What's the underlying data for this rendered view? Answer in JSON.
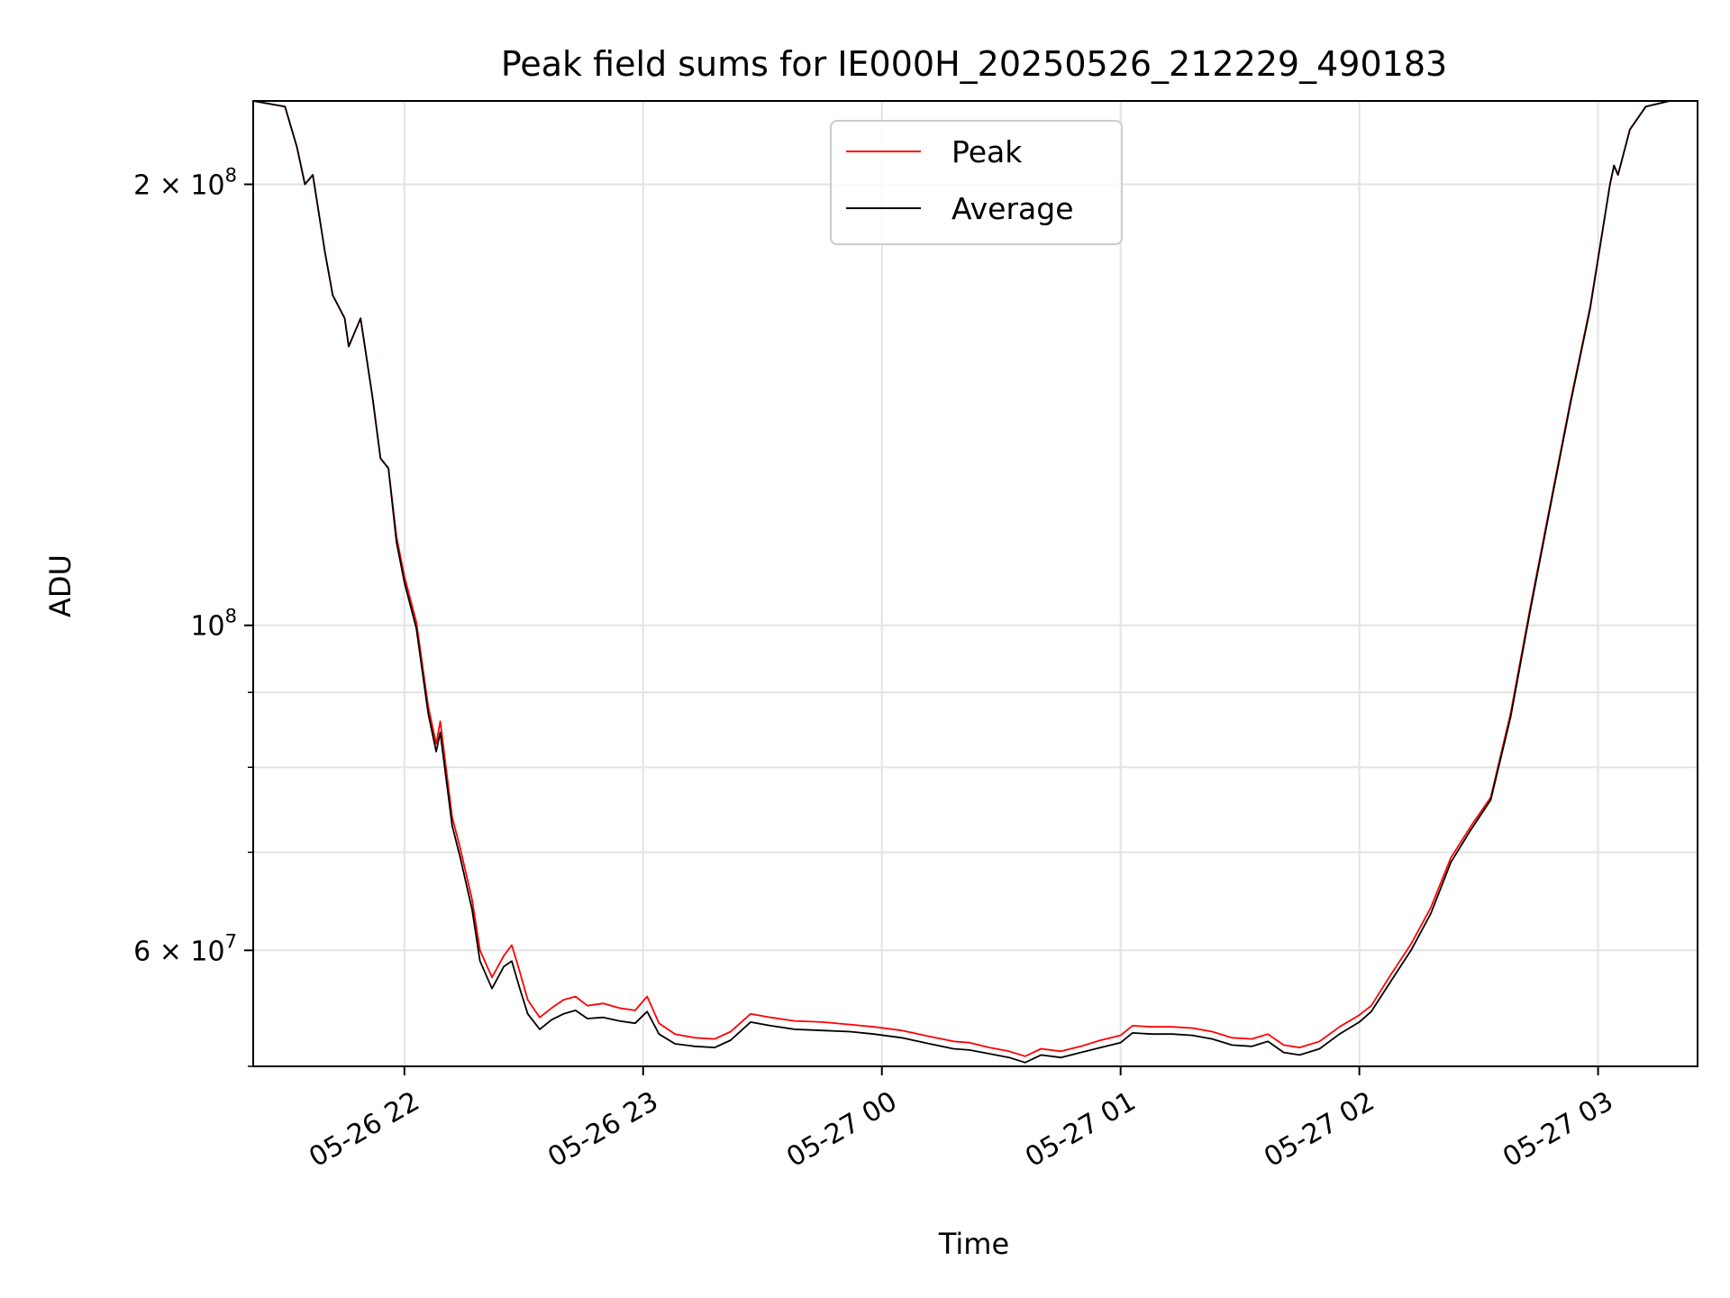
{
  "chart_data": {
    "type": "line",
    "title": "Peak field sums for IE000H_20250526_212229_490183",
    "xlabel": "Time",
    "ylabel": "ADU",
    "y_scale": "log",
    "ylim": [
      50000000,
      228000000
    ],
    "xlim": [
      "2025-05-26 21:22",
      "2025-05-27 03:25"
    ],
    "grid": true,
    "legend_position": "top-center",
    "x_ticks": [
      {
        "time": "2025-05-26 22:00",
        "label": "05-26 22"
      },
      {
        "time": "2025-05-26 23:00",
        "label": "05-26 23"
      },
      {
        "time": "2025-05-27 00:00",
        "label": "05-27 00"
      },
      {
        "time": "2025-05-27 01:00",
        "label": "05-27 01"
      },
      {
        "time": "2025-05-27 02:00",
        "label": "05-27 02"
      },
      {
        "time": "2025-05-27 03:00",
        "label": "05-27 03"
      }
    ],
    "y_major_ticks": [
      {
        "value": 200000000,
        "label_base": "2 × 10",
        "label_exp": "8"
      },
      {
        "value": 100000000,
        "label_base": "10",
        "label_exp": "8"
      },
      {
        "value": 60000000,
        "label_base": "6 × 10",
        "label_exp": "7"
      }
    ],
    "y_minor_ticks": [
      90000000,
      80000000,
      70000000,
      50000000
    ],
    "colors": {
      "Peak": "#ff0000",
      "Average": "#000000"
    },
    "series": [
      {
        "name": "Peak",
        "color": "#ff0000",
        "points": [
          [
            "2025-05-26 21:22",
            228000000
          ],
          [
            "2025-05-26 21:30",
            226000000
          ],
          [
            "2025-05-26 21:33",
            212000000
          ],
          [
            "2025-05-26 21:35",
            200000000
          ],
          [
            "2025-05-26 21:37",
            203000000
          ],
          [
            "2025-05-26 21:40",
            180000000
          ],
          [
            "2025-05-26 21:42",
            168000000
          ],
          [
            "2025-05-26 21:45",
            162000000
          ],
          [
            "2025-05-26 21:46",
            155000000
          ],
          [
            "2025-05-26 21:49",
            162000000
          ],
          [
            "2025-05-26 21:52",
            143000000
          ],
          [
            "2025-05-26 21:54",
            130000000
          ],
          [
            "2025-05-26 21:56",
            128000000
          ],
          [
            "2025-05-26 21:58",
            115000000
          ],
          [
            "2025-05-26 22:00",
            108000000
          ],
          [
            "2025-05-26 22:03",
            100500000
          ],
          [
            "2025-05-26 22:06",
            88000000
          ],
          [
            "2025-05-26 22:08",
            83000000
          ],
          [
            "2025-05-26 22:09",
            86000000
          ],
          [
            "2025-05-26 22:12",
            74000000
          ],
          [
            "2025-05-26 22:14",
            70500000
          ],
          [
            "2025-05-26 22:17",
            65000000
          ],
          [
            "2025-05-26 22:19",
            60000000
          ],
          [
            "2025-05-26 22:22",
            57500000
          ],
          [
            "2025-05-26 22:25",
            59500000
          ],
          [
            "2025-05-26 22:27",
            60500000
          ],
          [
            "2025-05-26 22:29",
            58000000
          ],
          [
            "2025-05-26 22:31",
            55500000
          ],
          [
            "2025-05-26 22:34",
            54000000
          ],
          [
            "2025-05-26 22:37",
            54800000
          ],
          [
            "2025-05-26 22:40",
            55500000
          ],
          [
            "2025-05-26 22:43",
            55800000
          ],
          [
            "2025-05-26 22:46",
            55000000
          ],
          [
            "2025-05-26 22:50",
            55200000
          ],
          [
            "2025-05-26 22:54",
            54800000
          ],
          [
            "2025-05-26 22:58",
            54600000
          ],
          [
            "2025-05-26 23:01",
            55800000
          ],
          [
            "2025-05-26 23:04",
            53500000
          ],
          [
            "2025-05-26 23:08",
            52600000
          ],
          [
            "2025-05-26 23:13",
            52300000
          ],
          [
            "2025-05-26 23:18",
            52200000
          ],
          [
            "2025-05-26 23:22",
            52800000
          ],
          [
            "2025-05-26 23:27",
            54300000
          ],
          [
            "2025-05-26 23:32",
            54000000
          ],
          [
            "2025-05-26 23:38",
            53700000
          ],
          [
            "2025-05-26 23:45",
            53600000
          ],
          [
            "2025-05-26 23:52",
            53400000
          ],
          [
            "2025-05-26 23:58",
            53200000
          ],
          [
            "2025-05-27 00:05",
            52900000
          ],
          [
            "2025-05-27 00:12",
            52400000
          ],
          [
            "2025-05-27 00:18",
            52000000
          ],
          [
            "2025-05-27 00:22",
            51900000
          ],
          [
            "2025-05-27 00:27",
            51500000
          ],
          [
            "2025-05-27 00:32",
            51200000
          ],
          [
            "2025-05-27 00:36",
            50800000
          ],
          [
            "2025-05-27 00:40",
            51400000
          ],
          [
            "2025-05-27 00:45",
            51200000
          ],
          [
            "2025-05-27 00:50",
            51600000
          ],
          [
            "2025-05-27 00:55",
            52100000
          ],
          [
            "2025-05-27 01:00",
            52500000
          ],
          [
            "2025-05-27 01:03",
            53300000
          ],
          [
            "2025-05-27 01:08",
            53200000
          ],
          [
            "2025-05-27 01:13",
            53200000
          ],
          [
            "2025-05-27 01:18",
            53100000
          ],
          [
            "2025-05-27 01:23",
            52800000
          ],
          [
            "2025-05-27 01:28",
            52300000
          ],
          [
            "2025-05-27 01:33",
            52200000
          ],
          [
            "2025-05-27 01:37",
            52600000
          ],
          [
            "2025-05-27 01:41",
            51700000
          ],
          [
            "2025-05-27 01:45",
            51500000
          ],
          [
            "2025-05-27 01:50",
            52000000
          ],
          [
            "2025-05-27 01:55",
            53200000
          ],
          [
            "2025-05-27 02:00",
            54200000
          ],
          [
            "2025-05-27 02:03",
            55000000
          ],
          [
            "2025-05-27 02:08",
            57800000
          ],
          [
            "2025-05-27 02:13",
            60600000
          ],
          [
            "2025-05-27 02:18",
            64200000
          ],
          [
            "2025-05-27 02:23",
            69400000
          ],
          [
            "2025-05-27 02:28",
            72900000
          ],
          [
            "2025-05-27 02:33",
            76300000
          ],
          [
            "2025-05-27 02:38",
            87000000
          ],
          [
            "2025-05-27 02:43",
            103000000
          ],
          [
            "2025-05-27 02:48",
            121000000
          ],
          [
            "2025-05-27 02:53",
            142000000
          ],
          [
            "2025-05-27 02:58",
            165000000
          ],
          [
            "2025-05-27 03:03",
            200000000
          ],
          [
            "2025-05-27 03:04",
            206000000
          ],
          [
            "2025-05-27 03:05",
            203000000
          ],
          [
            "2025-05-27 03:08",
            218000000
          ],
          [
            "2025-05-27 03:12",
            226000000
          ],
          [
            "2025-05-27 03:18",
            228000000
          ]
        ]
      },
      {
        "name": "Average",
        "color": "#000000",
        "points": [
          [
            "2025-05-26 21:22",
            228000000
          ],
          [
            "2025-05-26 21:30",
            226000000
          ],
          [
            "2025-05-26 21:33",
            212000000
          ],
          [
            "2025-05-26 21:35",
            200000000
          ],
          [
            "2025-05-26 21:37",
            203000000
          ],
          [
            "2025-05-26 21:40",
            180000000
          ],
          [
            "2025-05-26 21:42",
            168000000
          ],
          [
            "2025-05-26 21:45",
            162000000
          ],
          [
            "2025-05-26 21:46",
            155000000
          ],
          [
            "2025-05-26 21:49",
            162000000
          ],
          [
            "2025-05-26 21:52",
            143000000
          ],
          [
            "2025-05-26 21:54",
            130000000
          ],
          [
            "2025-05-26 21:56",
            128000000
          ],
          [
            "2025-05-26 21:58",
            114000000
          ],
          [
            "2025-05-26 22:00",
            107000000
          ],
          [
            "2025-05-26 22:03",
            99500000
          ],
          [
            "2025-05-26 22:06",
            87000000
          ],
          [
            "2025-05-26 22:08",
            82000000
          ],
          [
            "2025-05-26 22:09",
            84500000
          ],
          [
            "2025-05-26 22:12",
            73000000
          ],
          [
            "2025-05-26 22:14",
            69500000
          ],
          [
            "2025-05-26 22:17",
            64000000
          ],
          [
            "2025-05-26 22:19",
            59000000
          ],
          [
            "2025-05-26 22:22",
            56500000
          ],
          [
            "2025-05-26 22:25",
            58500000
          ],
          [
            "2025-05-26 22:27",
            59000000
          ],
          [
            "2025-05-26 22:29",
            56500000
          ],
          [
            "2025-05-26 22:31",
            54300000
          ],
          [
            "2025-05-26 22:34",
            53000000
          ],
          [
            "2025-05-26 22:37",
            53800000
          ],
          [
            "2025-05-26 22:40",
            54300000
          ],
          [
            "2025-05-26 22:43",
            54600000
          ],
          [
            "2025-05-26 22:46",
            53900000
          ],
          [
            "2025-05-26 22:50",
            54000000
          ],
          [
            "2025-05-26 22:54",
            53700000
          ],
          [
            "2025-05-26 22:58",
            53500000
          ],
          [
            "2025-05-26 23:01",
            54500000
          ],
          [
            "2025-05-26 23:04",
            52600000
          ],
          [
            "2025-05-26 23:08",
            51800000
          ],
          [
            "2025-05-26 23:13",
            51600000
          ],
          [
            "2025-05-26 23:18",
            51500000
          ],
          [
            "2025-05-26 23:22",
            52100000
          ],
          [
            "2025-05-26 23:27",
            53600000
          ],
          [
            "2025-05-26 23:32",
            53300000
          ],
          [
            "2025-05-26 23:38",
            53000000
          ],
          [
            "2025-05-26 23:45",
            52900000
          ],
          [
            "2025-05-26 23:52",
            52800000
          ],
          [
            "2025-05-26 23:58",
            52600000
          ],
          [
            "2025-05-27 00:05",
            52300000
          ],
          [
            "2025-05-27 00:12",
            51800000
          ],
          [
            "2025-05-27 00:18",
            51400000
          ],
          [
            "2025-05-27 00:22",
            51300000
          ],
          [
            "2025-05-27 00:27",
            51000000
          ],
          [
            "2025-05-27 00:32",
            50700000
          ],
          [
            "2025-05-27 00:36",
            50300000
          ],
          [
            "2025-05-27 00:40",
            50900000
          ],
          [
            "2025-05-27 00:45",
            50700000
          ],
          [
            "2025-05-27 00:50",
            51100000
          ],
          [
            "2025-05-27 00:55",
            51500000
          ],
          [
            "2025-05-27 01:00",
            51900000
          ],
          [
            "2025-05-27 01:03",
            52700000
          ],
          [
            "2025-05-27 01:08",
            52600000
          ],
          [
            "2025-05-27 01:13",
            52600000
          ],
          [
            "2025-05-27 01:18",
            52500000
          ],
          [
            "2025-05-27 01:23",
            52200000
          ],
          [
            "2025-05-27 01:28",
            51700000
          ],
          [
            "2025-05-27 01:33",
            51600000
          ],
          [
            "2025-05-27 01:37",
            52000000
          ],
          [
            "2025-05-27 01:41",
            51100000
          ],
          [
            "2025-05-27 01:45",
            50900000
          ],
          [
            "2025-05-27 01:50",
            51400000
          ],
          [
            "2025-05-27 01:55",
            52600000
          ],
          [
            "2025-05-27 02:00",
            53600000
          ],
          [
            "2025-05-27 02:03",
            54500000
          ],
          [
            "2025-05-27 02:08",
            57200000
          ],
          [
            "2025-05-27 02:13",
            60000000
          ],
          [
            "2025-05-27 02:18",
            63600000
          ],
          [
            "2025-05-27 02:23",
            68900000
          ],
          [
            "2025-05-27 02:28",
            72500000
          ],
          [
            "2025-05-27 02:33",
            76000000
          ],
          [
            "2025-05-27 02:38",
            86500000
          ],
          [
            "2025-05-27 02:43",
            102500000
          ],
          [
            "2025-05-27 02:48",
            120500000
          ],
          [
            "2025-05-27 02:53",
            141500000
          ],
          [
            "2025-05-27 02:58",
            164500000
          ],
          [
            "2025-05-27 03:03",
            200000000
          ],
          [
            "2025-05-27 03:04",
            206000000
          ],
          [
            "2025-05-27 03:05",
            203000000
          ],
          [
            "2025-05-27 03:08",
            218000000
          ],
          [
            "2025-05-27 03:12",
            226000000
          ],
          [
            "2025-05-27 03:18",
            228000000
          ]
        ]
      }
    ]
  }
}
